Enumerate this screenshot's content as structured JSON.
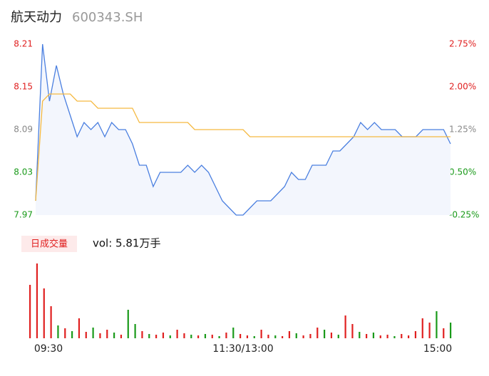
{
  "header": {
    "name": "航天动力",
    "code": "600343.SH"
  },
  "chart_data": [
    {
      "type": "line",
      "xlim": [
        0,
        240
      ],
      "xticks": [
        {
          "value": 0,
          "label": "09:30"
        },
        {
          "value": 120,
          "label": "11:30/13:00"
        },
        {
          "value": 240,
          "label": "15:00"
        }
      ],
      "ylim": [
        7.97,
        8.21
      ],
      "yticks": [
        {
          "value": 8.21,
          "label": "8.21",
          "color": "#e02020"
        },
        {
          "value": 8.15,
          "label": "8.15",
          "color": "#e02020"
        },
        {
          "value": 8.09,
          "label": "8.09",
          "color": "#888888"
        },
        {
          "value": 8.03,
          "label": "8.03",
          "color": "#1a9a1a"
        },
        {
          "value": 7.97,
          "label": "7.97",
          "color": "#1a9a1a"
        }
      ],
      "y2ticks": [
        {
          "value": 8.21,
          "label": "2.75%",
          "color": "#e02020"
        },
        {
          "value": 8.15,
          "label": "2.00%",
          "color": "#e02020"
        },
        {
          "value": 8.09,
          "label": "1.25%",
          "color": "#888888"
        },
        {
          "value": 8.03,
          "label": "0.50%",
          "color": "#1a9a1a"
        },
        {
          "value": 7.97,
          "label": "-0.25%",
          "color": "#1a9a1a"
        }
      ],
      "x": [
        0,
        4,
        8,
        12,
        16,
        20,
        24,
        28,
        32,
        36,
        40,
        44,
        48,
        52,
        56,
        60,
        64,
        68,
        72,
        76,
        80,
        84,
        88,
        92,
        96,
        100,
        104,
        108,
        112,
        116,
        120,
        124,
        128,
        132,
        136,
        140,
        144,
        148,
        152,
        156,
        160,
        164,
        168,
        172,
        176,
        180,
        184,
        188,
        192,
        196,
        200,
        204,
        208,
        212,
        216,
        220,
        224,
        228,
        232,
        236,
        240
      ],
      "series": [
        {
          "color": "#4a7fe0",
          "values": [
            7.99,
            8.21,
            8.13,
            8.18,
            8.14,
            8.11,
            8.08,
            8.1,
            8.09,
            8.1,
            8.08,
            8.1,
            8.09,
            8.09,
            8.07,
            8.04,
            8.04,
            8.01,
            8.03,
            8.03,
            8.03,
            8.03,
            8.04,
            8.03,
            8.04,
            8.03,
            8.01,
            7.99,
            7.98,
            7.97,
            7.97,
            7.98,
            7.99,
            7.99,
            7.99,
            8.0,
            8.01,
            8.03,
            8.02,
            8.02,
            8.04,
            8.04,
            8.04,
            8.06,
            8.06,
            8.07,
            8.08,
            8.1,
            8.09,
            8.1,
            8.09,
            8.09,
            8.09,
            8.08,
            8.08,
            8.08,
            8.09,
            8.09,
            8.09,
            8.09,
            8.07
          ]
        },
        {
          "color": "#f5b940",
          "values": [
            7.99,
            8.13,
            8.14,
            8.14,
            8.14,
            8.14,
            8.13,
            8.13,
            8.13,
            8.12,
            8.12,
            8.12,
            8.12,
            8.12,
            8.12,
            8.1,
            8.1,
            8.1,
            8.1,
            8.1,
            8.1,
            8.1,
            8.1,
            8.09,
            8.09,
            8.09,
            8.09,
            8.09,
            8.09,
            8.09,
            8.09,
            8.08,
            8.08,
            8.08,
            8.08,
            8.08,
            8.08,
            8.08,
            8.08,
            8.08,
            8.08,
            8.08,
            8.08,
            8.08,
            8.08,
            8.08,
            8.08,
            8.08,
            8.08,
            8.08,
            8.08,
            8.08,
            8.08,
            8.08,
            8.08,
            8.08,
            8.08,
            8.08,
            8.08,
            8.08,
            8.08
          ]
        }
      ]
    },
    {
      "type": "bar",
      "label": "日成交量",
      "vol_text": "vol: 5.81万手",
      "xlim": [
        0,
        240
      ],
      "ylim": [
        0,
        110
      ],
      "x": [
        0,
        4,
        8,
        12,
        16,
        20,
        24,
        28,
        32,
        36,
        40,
        44,
        48,
        52,
        56,
        60,
        64,
        68,
        72,
        76,
        80,
        84,
        88,
        92,
        96,
        100,
        104,
        108,
        112,
        116,
        120,
        124,
        128,
        132,
        136,
        140,
        144,
        148,
        152,
        156,
        160,
        164,
        168,
        172,
        176,
        180,
        184,
        188,
        192,
        196,
        200,
        204,
        208,
        212,
        216,
        220,
        224,
        228,
        232,
        236,
        240
      ],
      "values": [
        75,
        105,
        70,
        45,
        18,
        14,
        10,
        28,
        9,
        15,
        7,
        12,
        8,
        5,
        40,
        20,
        10,
        6,
        5,
        8,
        4,
        12,
        7,
        5,
        4,
        6,
        5,
        3,
        8,
        15,
        6,
        4,
        3,
        12,
        5,
        4,
        3,
        10,
        7,
        4,
        6,
        15,
        12,
        8,
        5,
        32,
        20,
        9,
        6,
        8,
        4,
        5,
        3,
        6,
        4,
        10,
        28,
        22,
        38,
        14,
        22
      ],
      "colors": [
        "#e02020",
        "#e02020",
        "#e02020",
        "#e02020",
        "#1a9a1a",
        "#e02020",
        "#1a9a1a",
        "#e02020",
        "#e02020",
        "#1a9a1a",
        "#e02020",
        "#e02020",
        "#1a9a1a",
        "#e02020",
        "#1a9a1a",
        "#1a9a1a",
        "#e02020",
        "#1a9a1a",
        "#e02020",
        "#e02020",
        "#1a9a1a",
        "#e02020",
        "#e02020",
        "#1a9a1a",
        "#e02020",
        "#1a9a1a",
        "#e02020",
        "#1a9a1a",
        "#e02020",
        "#1a9a1a",
        "#e02020",
        "#e02020",
        "#1a9a1a",
        "#e02020",
        "#e02020",
        "#1a9a1a",
        "#e02020",
        "#e02020",
        "#1a9a1a",
        "#e02020",
        "#e02020",
        "#e02020",
        "#1a9a1a",
        "#e02020",
        "#1a9a1a",
        "#e02020",
        "#e02020",
        "#1a9a1a",
        "#e02020",
        "#1a9a1a",
        "#e02020",
        "#e02020",
        "#1a9a1a",
        "#e02020",
        "#e02020",
        "#e02020",
        "#e02020",
        "#e02020",
        "#1a9a1a",
        "#e02020",
        "#1a9a1a"
      ]
    }
  ]
}
